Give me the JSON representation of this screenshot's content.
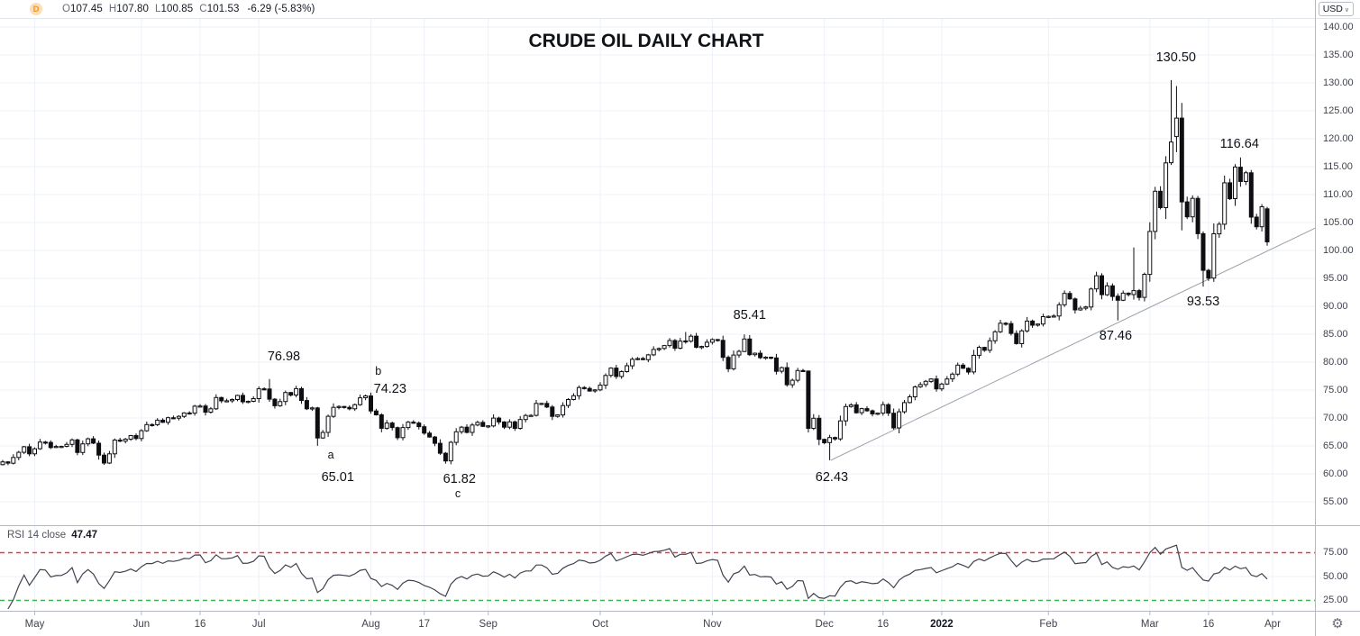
{
  "header": {
    "timeframe": "D",
    "fields": [
      {
        "k": "O",
        "v": "107.45"
      },
      {
        "k": "H",
        "v": "107.80"
      },
      {
        "k": "L",
        "v": "100.85"
      },
      {
        "k": "C",
        "v": "101.53"
      }
    ],
    "change": "-6.29 (-5.83%)",
    "currency": "USD"
  },
  "chart_data": {
    "type": "candlestick",
    "title": "CRUDE OIL DAILY CHART",
    "price_axis": {
      "min": 55,
      "max": 140,
      "step": 5,
      "currency": "USD"
    },
    "time_axis": [
      {
        "label": "May",
        "i": 6
      },
      {
        "label": "Jun",
        "i": 26
      },
      {
        "label": "16",
        "i": 37
      },
      {
        "label": "Jul",
        "i": 48
      },
      {
        "label": "Aug",
        "i": 69
      },
      {
        "label": "17",
        "i": 79
      },
      {
        "label": "Sep",
        "i": 91
      },
      {
        "label": "Oct",
        "i": 112
      },
      {
        "label": "Nov",
        "i": 133
      },
      {
        "label": "Dec",
        "i": 154
      },
      {
        "label": "16",
        "i": 165
      },
      {
        "label": "2022",
        "i": 176,
        "bold": true
      },
      {
        "label": "Feb",
        "i": 196
      },
      {
        "label": "Mar",
        "i": 215
      },
      {
        "label": "16",
        "i": 226
      },
      {
        "label": "Apr",
        "i": 238
      }
    ],
    "closes": [
      62.14,
      61.91,
      62.94,
      63.86,
      64.86,
      63.58,
      64.49,
      65.69,
      65.63,
      64.71,
      64.9,
      64.92,
      65.28,
      66.08,
      63.82,
      65.37,
      66.27,
      65.49,
      63.36,
      61.94,
      63.58,
      66.05,
      65.85,
      66.21,
      66.85,
      66.32,
      67.72,
      68.83,
      68.81,
      69.62,
      69.23,
      70.05,
      69.96,
      70.29,
      70.91,
      70.88,
      72.12,
      72.15,
      71.04,
      71.64,
      73.66,
      73.06,
      73.08,
      73.3,
      74.05,
      72.91,
      72.98,
      73.47,
      75.23,
      75.16,
      73.37,
      72.2,
      72.94,
      74.56,
      74.1,
      75.25,
      73.13,
      71.65,
      71.81,
      66.42,
      67.42,
      70.3,
      71.91,
      72.07,
      71.91,
      71.65,
      72.39,
      73.62,
      73.95,
      71.26,
      70.56,
      68.15,
      69.09,
      68.28,
      66.48,
      68.29,
      69.25,
      69.09,
      68.44,
      67.29,
      66.59,
      65.46,
      63.69,
      62.32,
      65.64,
      67.54,
      68.36,
      67.42,
      68.74,
      69.21,
      68.5,
      68.59,
      69.99,
      69.29,
      68.35,
      69.3,
      68.14,
      69.72,
      70.45,
      70.46,
      72.61,
      72.61,
      71.97,
      70.29,
      70.56,
      72.23,
      73.3,
      73.98,
      75.45,
      75.29,
      74.83,
      75.03,
      75.88,
      77.62,
      78.93,
      77.43,
      78.3,
      79.35,
      80.52,
      80.64,
      80.44,
      81.31,
      82.28,
      82.44,
      82.96,
      83.87,
      82.5,
      83.76,
      83.76,
      84.65,
      82.66,
      82.81,
      83.57,
      84.05,
      83.91,
      80.86,
      78.81,
      81.27,
      81.93,
      84.15,
      81.34,
      81.59,
      80.79,
      80.88,
      80.76,
      78.36,
      79.01,
      75.94,
      76.75,
      78.5,
      78.39,
      68.15,
      69.95,
      66.18,
      65.57,
      66.5,
      66.26,
      69.49,
      72.05,
      72.36,
      70.94,
      71.67,
      71.29,
      70.73,
      70.87,
      72.38,
      70.86,
      68.23,
      71.12,
      72.76,
      73.79,
      75.57,
      75.98,
      76.56,
      76.99,
      75.21,
      76.08,
      76.99,
      77.85,
      79.46,
      78.9,
      78.23,
      81.22,
      82.64,
      82.12,
      83.82,
      85.43,
      86.96,
      86.9,
      85.14,
      83.31,
      85.6,
      87.35,
      86.61,
      86.82,
      88.15,
      88.2,
      88.26,
      90.27,
      92.31,
      91.32,
      89.36,
      89.66,
      89.88,
      93.1,
      95.46,
      92.07,
      93.66,
      91.76,
      91.07,
      92.35,
      92.1,
      92.81,
      91.59,
      95.72,
      103.41,
      110.6,
      107.67,
      115.68,
      119.4,
      123.7,
      108.7,
      106.02,
      109.33,
      103.01,
      96.44,
      95.04,
      102.98,
      104.7,
      112.12,
      109.27,
      114.93,
      112.34,
      113.9,
      105.96,
      104.24,
      107.82,
      101.53
    ],
    "specials": {
      "50": [
        75.2,
        76.98,
        72.9,
        73.37
      ],
      "59": [
        71.8,
        72.0,
        65.01,
        66.42
      ],
      "83": [
        63.7,
        63.9,
        61.82,
        62.32
      ],
      "128": [
        83.8,
        85.41,
        83.3,
        83.76
      ],
      "139": [
        81.9,
        84.97,
        81.8,
        84.15
      ],
      "151": [
        78.4,
        78.5,
        67.4,
        68.15
      ],
      "155": [
        65.6,
        67.0,
        62.43,
        66.5
      ],
      "209": [
        91.8,
        92.3,
        87.46,
        91.07
      ],
      "212": [
        92.1,
        100.54,
        91.2,
        92.81
      ],
      "219": [
        115.7,
        130.5,
        115.3,
        119.4
      ],
      "220": [
        120.4,
        129.44,
        117.6,
        123.7
      ],
      "221": [
        123.7,
        126.4,
        103.6,
        108.7
      ],
      "225": [
        103.0,
        103.4,
        93.53,
        96.44
      ],
      "232": [
        114.9,
        116.64,
        111.4,
        112.34
      ],
      "237": [
        107.45,
        107.8,
        100.85,
        101.53
      ]
    },
    "annotations": [
      {
        "text": "76.98",
        "i": 52.7,
        "p": 81.0,
        "size": 14.5
      },
      {
        "text": "b",
        "i": 70.4,
        "p": 78.4,
        "size": 12.5
      },
      {
        "text": "74.23",
        "i": 72.6,
        "p": 75.2,
        "size": 14.5
      },
      {
        "text": "a",
        "i": 61.5,
        "p": 63.4,
        "size": 12.5
      },
      {
        "text": "65.01",
        "i": 62.8,
        "p": 59.4,
        "size": 14.5
      },
      {
        "text": "61.82",
        "i": 85.6,
        "p": 59.1,
        "size": 14.5
      },
      {
        "text": "c",
        "i": 85.3,
        "p": 56.5,
        "size": 12.5
      },
      {
        "text": "85.41",
        "i": 140.0,
        "p": 88.4,
        "size": 14.5
      },
      {
        "text": "62.43",
        "i": 155.4,
        "p": 59.4,
        "size": 14.5
      },
      {
        "text": "87.46",
        "i": 208.6,
        "p": 84.7,
        "size": 14.5
      },
      {
        "text": "93.53",
        "i": 225.0,
        "p": 90.8,
        "size": 14.5
      },
      {
        "text": "130.50",
        "i": 219.9,
        "p": 134.5,
        "size": 14.5
      },
      {
        "text": "116.64",
        "i": 231.8,
        "p": 119.0,
        "size": 14.5
      }
    ],
    "trendline": {
      "i1": 155.2,
      "p1": 62.43,
      "i2": 246.0,
      "p2": 104.0
    },
    "rsi": {
      "label": "RSI 14 close",
      "period": 14,
      "value": "47.47",
      "upper": 75,
      "lower": 25,
      "axis_labels": [
        75,
        50,
        25
      ]
    },
    "colors": {
      "up": "#ffffff",
      "down": "#0e0e12",
      "outline": "#0e0e12",
      "grid": "#edf1f8",
      "separator": "#b4b8c1",
      "trendline": "#9aa0a8",
      "rsi_line": "#40434e",
      "rsi_upper": "#f23645",
      "rsi_lower": "#3cb454"
    }
  }
}
